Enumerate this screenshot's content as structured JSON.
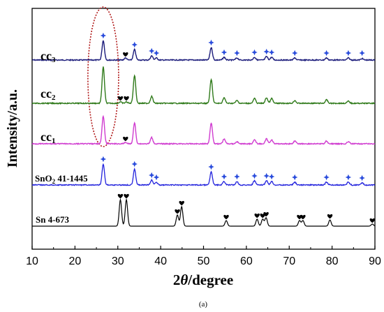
{
  "chart_data": {
    "type": "line",
    "xlabel_prefix": "2",
    "xlabel_theta": "θ",
    "xlabel_suffix": "/degree",
    "ylabel": "Intensity/a.u.",
    "xlim": [
      10,
      90
    ],
    "xticks": [
      "10",
      "20",
      "30",
      "40",
      "50",
      "60",
      "70",
      "80",
      "90"
    ],
    "caption": "(a)",
    "colors": {
      "cc3": "#1a1a7a",
      "cc2": "#2f7a1a",
      "cc1": "#d03cd0",
      "sno2": "#2222dd",
      "sn": "#000000",
      "highlight": "#b01818",
      "marker_diamond": "#2a4cdc",
      "marker_heart": "#000000"
    },
    "series": [
      {
        "id": "cc3",
        "label_main": "cc",
        "label_sub": "3",
        "peaks": [
          {
            "x": 26.6,
            "h": 28
          },
          {
            "x": 31.8,
            "h": 3
          },
          {
            "x": 33.9,
            "h": 15
          },
          {
            "x": 37.9,
            "h": 6
          },
          {
            "x": 39.0,
            "h": 3
          },
          {
            "x": 51.8,
            "h": 18
          },
          {
            "x": 54.8,
            "h": 4
          },
          {
            "x": 57.8,
            "h": 3
          },
          {
            "x": 61.9,
            "h": 4
          },
          {
            "x": 64.7,
            "h": 5
          },
          {
            "x": 65.9,
            "h": 4
          },
          {
            "x": 71.3,
            "h": 3
          },
          {
            "x": 78.7,
            "h": 3
          },
          {
            "x": 83.8,
            "h": 3
          },
          {
            "x": 87.0,
            "h": 2
          }
        ],
        "diamonds": [
          26.6,
          33.9,
          37.9,
          39.0,
          51.8,
          54.8,
          57.8,
          61.9,
          64.7,
          65.9,
          71.3,
          78.7,
          83.8,
          87.0
        ],
        "hearts": [
          31.8
        ]
      },
      {
        "id": "cc2",
        "label_main": "cc",
        "label_sub": "2",
        "peaks": [
          {
            "x": 26.6,
            "h": 52
          },
          {
            "x": 30.6,
            "h": 2
          },
          {
            "x": 32.0,
            "h": 2
          },
          {
            "x": 33.9,
            "h": 40
          },
          {
            "x": 37.9,
            "h": 10
          },
          {
            "x": 51.8,
            "h": 34
          },
          {
            "x": 54.8,
            "h": 8
          },
          {
            "x": 57.8,
            "h": 4
          },
          {
            "x": 61.9,
            "h": 7
          },
          {
            "x": 64.7,
            "h": 8
          },
          {
            "x": 65.9,
            "h": 7
          },
          {
            "x": 71.3,
            "h": 4
          },
          {
            "x": 78.7,
            "h": 5
          },
          {
            "x": 83.8,
            "h": 3
          }
        ],
        "diamonds": [],
        "hearts": [
          30.6,
          32.0
        ]
      },
      {
        "id": "cc1",
        "label_main": "cc",
        "label_sub": "1",
        "peaks": [
          {
            "x": 26.6,
            "h": 40
          },
          {
            "x": 31.8,
            "h": 2
          },
          {
            "x": 33.9,
            "h": 30
          },
          {
            "x": 37.9,
            "h": 9
          },
          {
            "x": 51.8,
            "h": 30
          },
          {
            "x": 54.8,
            "h": 7
          },
          {
            "x": 57.8,
            "h": 3
          },
          {
            "x": 61.9,
            "h": 6
          },
          {
            "x": 64.7,
            "h": 7
          },
          {
            "x": 65.9,
            "h": 6
          },
          {
            "x": 71.3,
            "h": 4
          },
          {
            "x": 78.7,
            "h": 4
          },
          {
            "x": 83.8,
            "h": 3
          }
        ],
        "diamonds": [],
        "hearts": [
          31.8
        ]
      },
      {
        "id": "sno2",
        "label_main": "SnO",
        "label_sub": "2",
        "label_rest": " 41-1445",
        "peaks": [
          {
            "x": 26.6,
            "h": 30
          },
          {
            "x": 33.9,
            "h": 23
          },
          {
            "x": 37.9,
            "h": 7
          },
          {
            "x": 39.0,
            "h": 4
          },
          {
            "x": 51.8,
            "h": 19
          },
          {
            "x": 54.8,
            "h": 5
          },
          {
            "x": 57.8,
            "h": 5
          },
          {
            "x": 61.9,
            "h": 6
          },
          {
            "x": 64.7,
            "h": 6
          },
          {
            "x": 65.9,
            "h": 5
          },
          {
            "x": 71.3,
            "h": 4
          },
          {
            "x": 78.7,
            "h": 4
          },
          {
            "x": 83.8,
            "h": 4
          },
          {
            "x": 87.0,
            "h": 3
          }
        ],
        "diamonds": [
          26.6,
          33.9,
          37.9,
          39.0,
          51.8,
          54.8,
          57.8,
          61.9,
          64.7,
          65.9,
          71.3,
          78.7,
          83.8,
          87.0
        ],
        "hearts": []
      },
      {
        "id": "sn",
        "label_main": "Sn 4-673",
        "peaks": [
          {
            "x": 30.6,
            "h": 38
          },
          {
            "x": 32.0,
            "h": 38
          },
          {
            "x": 43.9,
            "h": 16
          },
          {
            "x": 44.9,
            "h": 28
          },
          {
            "x": 55.3,
            "h": 8
          },
          {
            "x": 62.5,
            "h": 10
          },
          {
            "x": 63.8,
            "h": 10
          },
          {
            "x": 64.6,
            "h": 12
          },
          {
            "x": 72.4,
            "h": 8
          },
          {
            "x": 73.2,
            "h": 8
          },
          {
            "x": 79.5,
            "h": 9
          },
          {
            "x": 89.4,
            "h": 3
          }
        ],
        "diamonds": [],
        "hearts": [
          30.6,
          32.0,
          43.9,
          44.9,
          55.3,
          62.5,
          63.8,
          64.6,
          72.4,
          73.2,
          79.5,
          89.4
        ]
      }
    ]
  }
}
